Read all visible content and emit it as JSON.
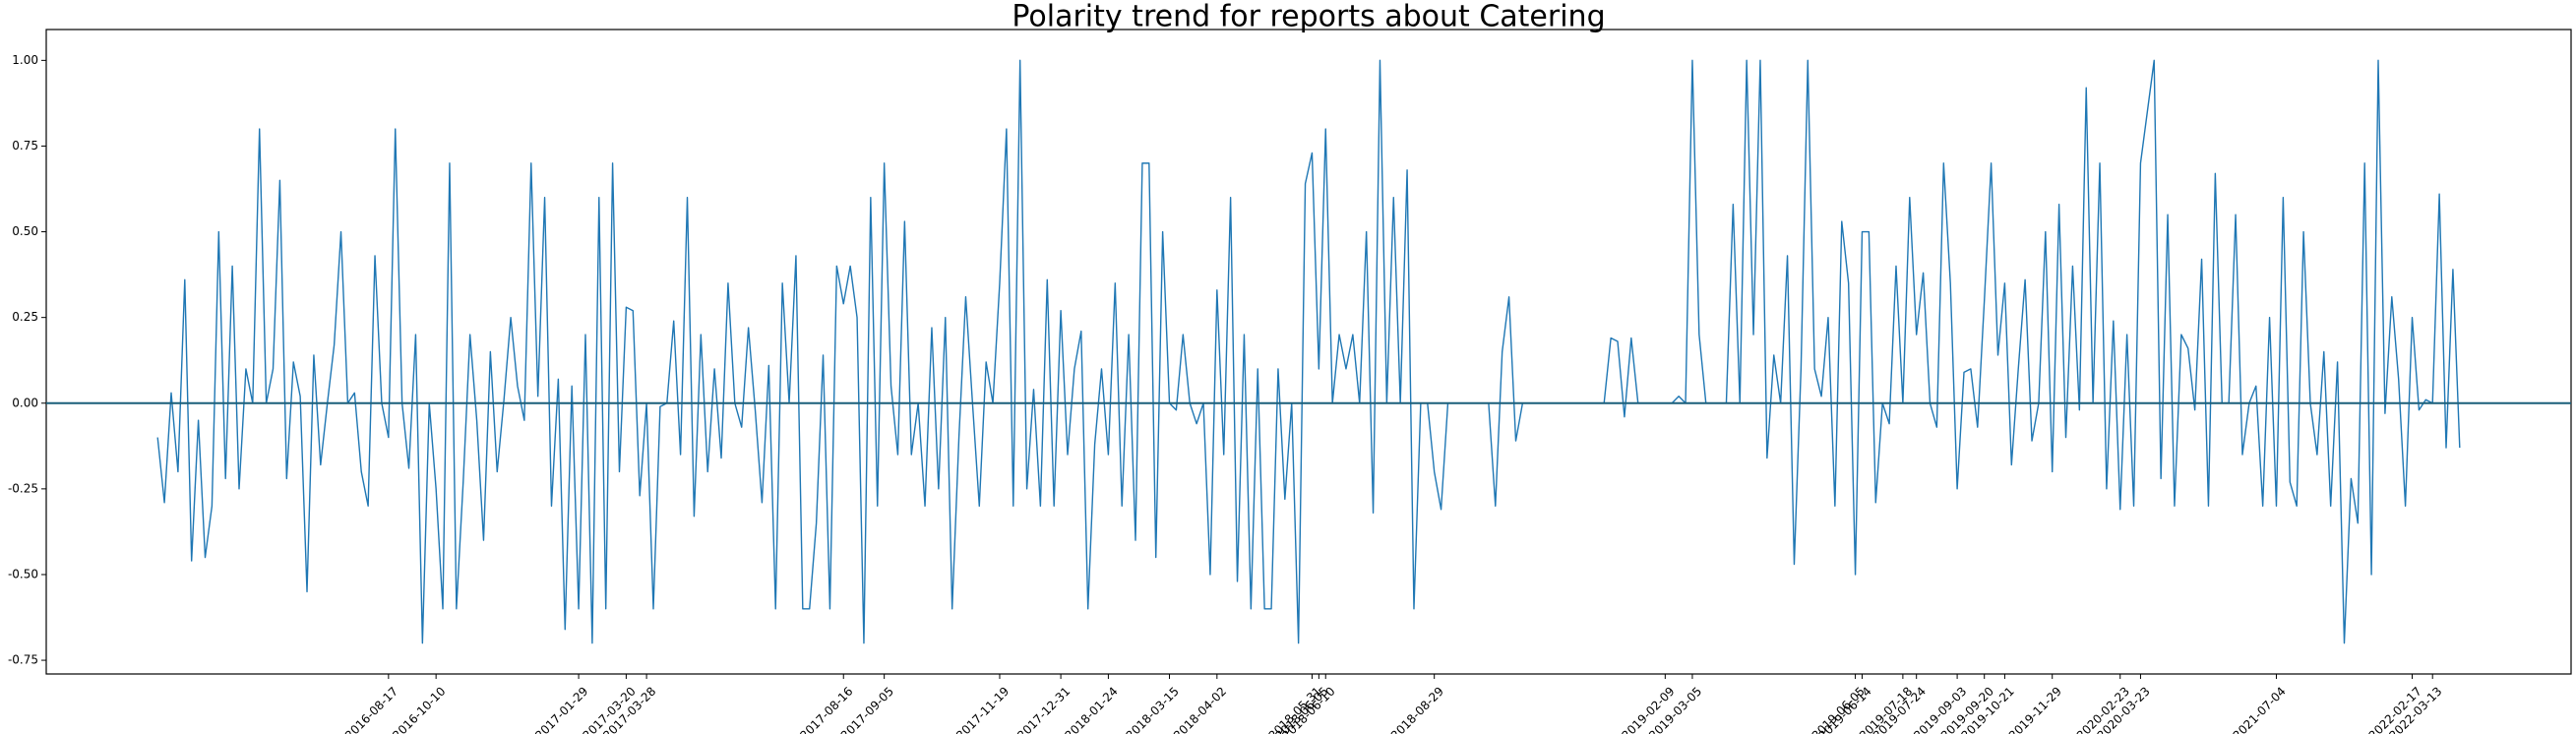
{
  "chart_data": {
    "type": "line",
    "title": "Polarity trend for reports about Catering",
    "color": "#1f77b4",
    "hline": 0,
    "ylim": [
      -0.79,
      1.09
    ],
    "yticks": [
      {
        "value": -0.75,
        "label": "-0.75"
      },
      {
        "value": -0.5,
        "label": "-0.50"
      },
      {
        "value": -0.25,
        "label": "-0.25"
      },
      {
        "value": 0,
        "label": "0.00"
      },
      {
        "value": 0.25,
        "label": "0.25"
      },
      {
        "value": 0.5,
        "label": "0.50"
      },
      {
        "value": 0.75,
        "label": "0.75"
      },
      {
        "value": 1,
        "label": "1.00"
      }
    ],
    "categories": [
      null,
      null,
      null,
      null,
      null,
      null,
      null,
      null,
      null,
      null,
      null,
      null,
      null,
      null,
      null,
      null,
      null,
      null,
      null,
      null,
      null,
      null,
      null,
      null,
      null,
      null,
      null,
      null,
      null,
      null,
      null,
      null,
      null,
      null,
      "2016-08-17",
      null,
      null,
      null,
      null,
      null,
      null,
      "2016-10-10",
      null,
      null,
      null,
      null,
      null,
      null,
      null,
      null,
      null,
      null,
      null,
      null,
      null,
      null,
      null,
      null,
      null,
      null,
      null,
      null,
      "2017-01-29",
      null,
      null,
      null,
      null,
      null,
      null,
      "2017-03-20",
      null,
      null,
      "2017-03-28",
      null,
      null,
      null,
      null,
      null,
      null,
      null,
      null,
      null,
      null,
      null,
      null,
      null,
      null,
      null,
      null,
      null,
      null,
      null,
      null,
      null,
      null,
      null,
      null,
      null,
      null,
      null,
      null,
      "2017-08-16",
      null,
      null,
      null,
      null,
      null,
      "2017-09-05",
      null,
      null,
      null,
      null,
      null,
      null,
      null,
      null,
      null,
      null,
      null,
      null,
      null,
      null,
      null,
      null,
      "2017-11-19",
      null,
      null,
      null,
      null,
      null,
      null,
      null,
      null,
      "2017-12-31",
      null,
      null,
      null,
      null,
      null,
      null,
      "2018-01-24",
      null,
      null,
      null,
      null,
      null,
      null,
      null,
      null,
      "2018-03-15",
      null,
      null,
      null,
      null,
      null,
      null,
      "2018-04-02",
      null,
      null,
      null,
      null,
      null,
      null,
      null,
      null,
      null,
      null,
      null,
      null,
      null,
      "2018-05-31",
      "2018-06-05",
      "2018-06-10",
      null,
      null,
      null,
      null,
      null,
      null,
      null,
      null,
      null,
      null,
      null,
      null,
      null,
      null,
      null,
      "2018-08-29",
      null,
      null,
      null,
      null,
      null,
      null,
      null,
      null,
      null,
      null,
      null,
      null,
      null,
      null,
      null,
      null,
      null,
      null,
      null,
      null,
      null,
      null,
      null,
      null,
      null,
      null,
      null,
      null,
      null,
      null,
      null,
      null,
      null,
      "2019-02-09",
      null,
      null,
      null,
      "2019-03-05",
      null,
      null,
      null,
      null,
      null,
      null,
      null,
      null,
      null,
      null,
      null,
      null,
      null,
      null,
      null,
      null,
      null,
      null,
      null,
      null,
      null,
      null,
      null,
      "2019-06-05",
      "2019-06-14",
      null,
      null,
      null,
      null,
      null,
      "2019-07-18",
      null,
      "2019-07-24",
      null,
      null,
      null,
      null,
      null,
      "2019-09-03",
      null,
      null,
      null,
      "2019-09-20",
      null,
      null,
      "2019-10-21",
      null,
      null,
      null,
      null,
      null,
      null,
      "2019-11-29",
      null,
      null,
      null,
      null,
      null,
      null,
      null,
      null,
      null,
      "2020-02-23",
      null,
      null,
      "2020-03-23",
      null,
      null,
      null,
      null,
      null,
      null,
      null,
      null,
      null,
      null,
      null,
      null,
      null,
      null,
      null,
      null,
      null,
      null,
      null,
      "2021-07-04",
      null,
      null,
      null,
      null,
      null,
      null,
      null,
      null,
      null,
      null,
      null,
      null,
      null,
      null,
      null,
      null,
      null,
      null,
      null,
      "2022-02-17",
      null,
      null,
      "2022-03-13",
      null,
      null,
      null,
      null
    ],
    "values": [
      -0.1,
      -0.29,
      0.03,
      -0.2,
      0.36,
      -0.46,
      -0.05,
      -0.45,
      -0.3,
      0.5,
      -0.22,
      0.4,
      -0.25,
      0.1,
      0,
      0.8,
      0,
      0.1,
      0.65,
      -0.22,
      0.12,
      0.02,
      -0.55,
      0.14,
      -0.18,
      0,
      0.17,
      0.5,
      0,
      0.03,
      -0.2,
      -0.3,
      0.43,
      0,
      -0.1,
      0.8,
      0,
      -0.19,
      0.2,
      -0.7,
      0,
      -0.25,
      -0.6,
      0.7,
      -0.6,
      -0.23,
      0.2,
      -0.05,
      -0.4,
      0.15,
      -0.2,
      0.01,
      0.25,
      0.05,
      -0.05,
      0.7,
      0.02,
      0.6,
      -0.3,
      0.07,
      -0.66,
      0.05,
      -0.6,
      0.2,
      -0.7,
      0.6,
      -0.6,
      0.7,
      -0.2,
      0.28,
      0.27,
      -0.27,
      0,
      -0.6,
      -0.01,
      0,
      0.24,
      -0.15,
      0.6,
      -0.33,
      0.2,
      -0.2,
      0.1,
      -0.16,
      0.35,
      0,
      -0.07,
      0.22,
      -0.02,
      -0.29,
      0.11,
      -0.6,
      0.35,
      0,
      0.43,
      -0.6,
      -0.6,
      -0.35,
      0.14,
      -0.6,
      0.4,
      0.29,
      0.4,
      0.25,
      -0.7,
      0.6,
      -0.3,
      0.7,
      0.05,
      -0.15,
      0.53,
      -0.15,
      0,
      -0.3,
      0.22,
      -0.25,
      0.25,
      -0.6,
      -0.1,
      0.31,
      0,
      -0.3,
      0.12,
      0,
      0.35,
      0.8,
      -0.3,
      1.0,
      -0.25,
      0.04,
      -0.3,
      0.36,
      -0.3,
      0.27,
      -0.15,
      0.1,
      0.21,
      -0.6,
      -0.12,
      0.1,
      -0.15,
      0.35,
      -0.3,
      0.2,
      -0.4,
      0.7,
      0.7,
      -0.45,
      0.5,
      0,
      -0.02,
      0.2,
      0,
      -0.06,
      0,
      -0.5,
      0.33,
      -0.15,
      0.6,
      -0.52,
      0.2,
      -0.6,
      0.1,
      -0.6,
      -0.6,
      0.1,
      -0.28,
      0,
      -0.7,
      0.64,
      0.73,
      0.1,
      0.8,
      0,
      0.2,
      0.1,
      0.2,
      0,
      0.5,
      -0.32,
      1.0,
      0,
      0.6,
      0,
      0.68,
      -0.6,
      0,
      0,
      -0.2,
      -0.31,
      0,
      0,
      0,
      0,
      0,
      0,
      0,
      -0.3,
      0.15,
      0.31,
      -0.11,
      0,
      0,
      0,
      0,
      0,
      0,
      0,
      0,
      0,
      0,
      0,
      0,
      0,
      0.19,
      0.18,
      -0.04,
      0.19,
      0,
      0,
      0,
      0,
      0,
      0,
      0.02,
      0,
      1.0,
      0.2,
      0,
      0,
      0,
      0,
      0.58,
      0,
      1.0,
      0.2,
      1.0,
      -0.16,
      0.14,
      0,
      0.43,
      -0.47,
      0.1,
      1.0,
      0.1,
      0.02,
      0.25,
      -0.3,
      0.53,
      0.35,
      -0.5,
      0.5,
      0.5,
      -0.29,
      0,
      -0.06,
      0.4,
      0,
      0.6,
      0.2,
      0.38,
      0,
      -0.07,
      0.7,
      0.35,
      -0.25,
      0.09,
      0.1,
      -0.07,
      0.3,
      0.7,
      0.14,
      0.35,
      -0.18,
      0.1,
      0.36,
      -0.11,
      0,
      0.5,
      -0.2,
      0.58,
      -0.1,
      0.4,
      -0.02,
      0.92,
      0,
      0.7,
      -0.25,
      0.24,
      -0.31,
      0.2,
      -0.3,
      0.7,
      0.85,
      1.0,
      -0.22,
      0.55,
      -0.3,
      0.2,
      0.16,
      -0.02,
      0.42,
      -0.3,
      0.67,
      0,
      0,
      0.55,
      -0.15,
      0,
      0.05,
      -0.3,
      0.25,
      -0.3,
      0.6,
      -0.23,
      -0.3,
      0.5,
      0,
      -0.15,
      0.15,
      -0.3,
      0.12,
      -0.7,
      -0.22,
      -0.35,
      0.7,
      -0.5,
      1.0,
      -0.03,
      0.31,
      0.07,
      -0.3,
      0.25,
      -0.02,
      0.01,
      0,
      0.61,
      -0.13,
      0.39,
      -0.13
    ]
  }
}
